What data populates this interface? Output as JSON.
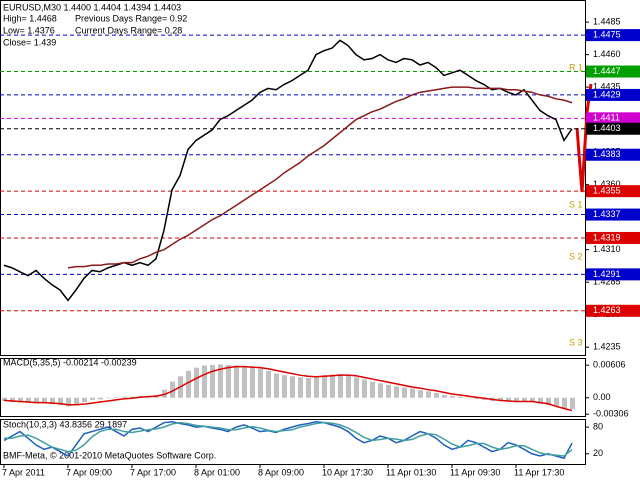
{
  "chart_data": [
    {
      "type": "line",
      "title": "EURUSD,M30  1.4400 1.4404 1.4394 1.4403",
      "info": [
        "High= 1.4468",
        "Previous Days Range= 0.92",
        "Low= 1.4376",
        "Current Days Range= 0.28",
        "Close= 1.439"
      ],
      "annotations": [
        "R 1",
        "S 1",
        "S 2",
        "S 3"
      ],
      "annotation_color": "#c8a000",
      "x": [
        "7 Apr 2011",
        null,
        null,
        null,
        null,
        null,
        null,
        null,
        "7 Apr 09:00",
        null,
        null,
        null,
        null,
        null,
        null,
        null,
        "7 Apr 17:00",
        null,
        null,
        null,
        null,
        null,
        null,
        null,
        "8 Apr 01:00",
        null,
        null,
        null,
        null,
        null,
        null,
        null,
        "8 Apr 09:00",
        null,
        null,
        null,
        null,
        null,
        null,
        null,
        "10 Apr 17:30",
        null,
        null,
        null,
        null,
        null,
        null,
        null,
        "11 Apr 01:30",
        null,
        null,
        null,
        null,
        null,
        null,
        null,
        "11 Apr 09:30",
        null,
        null,
        null,
        null,
        null,
        null,
        null,
        "11 Apr 17:30",
        null,
        null,
        null,
        null,
        null,
        null,
        null
      ],
      "series": [
        {
          "color": "#000000",
          "values": [
            1.4298,
            1.4296,
            1.4293,
            1.429,
            1.4294,
            1.4288,
            1.4283,
            1.4279,
            1.4271,
            1.4279,
            1.4288,
            1.4294,
            1.4293,
            1.4296,
            1.4298,
            1.43,
            1.4298,
            1.43,
            1.4298,
            1.4303,
            1.4325,
            1.4356,
            1.4367,
            1.4387,
            1.4394,
            1.4398,
            1.4402,
            1.441,
            1.4413,
            1.4417,
            1.4421,
            1.4425,
            1.4431,
            1.4434,
            1.4433,
            1.4437,
            1.444,
            1.4444,
            1.4448,
            1.446,
            1.4463,
            1.4465,
            1.4471,
            1.4467,
            1.446,
            1.4456,
            1.4457,
            1.446,
            1.4456,
            1.4454,
            1.4457,
            1.4456,
            1.4452,
            1.4454,
            1.445,
            1.4444,
            1.4446,
            1.4448,
            1.4444,
            1.444,
            1.4437,
            1.4433,
            1.4434,
            1.4431,
            1.4429,
            1.4433,
            1.4425,
            1.4417,
            1.4413,
            1.441,
            1.4394,
            1.4403
          ]
        },
        {
          "color": "#8b1a1a",
          "values": [
            null,
            null,
            null,
            null,
            null,
            null,
            null,
            null,
            1.4296,
            1.4297,
            1.4297,
            1.4298,
            1.4298,
            1.4299,
            1.4299,
            1.43,
            1.43,
            1.4303,
            1.4305,
            1.4308,
            1.431,
            1.4314,
            1.4318,
            1.4321,
            1.4325,
            1.4329,
            1.4333,
            1.4336,
            1.434,
            1.4344,
            1.4348,
            1.4352,
            1.4356,
            1.436,
            1.4364,
            1.4369,
            1.4373,
            1.4377,
            1.4382,
            1.4386,
            1.439,
            1.4395,
            1.44,
            1.4405,
            1.441,
            1.4413,
            1.4416,
            1.4418,
            1.4421,
            1.4424,
            1.4426,
            1.4429,
            1.4431,
            1.4432,
            1.4433,
            1.4434,
            1.4435,
            1.4435,
            1.4435,
            1.4434,
            1.4434,
            1.4434,
            1.4434,
            1.4433,
            1.4433,
            1.4432,
            1.4431,
            1.4429,
            1.4428,
            1.4426,
            1.4425,
            1.4423
          ]
        }
      ],
      "levels": [
        {
          "value": 1.4475,
          "color": "#0000cd"
        },
        {
          "value": 1.4447,
          "color": "#00a000"
        },
        {
          "value": 1.4429,
          "color": "#0000cd"
        },
        {
          "value": 1.4411,
          "color": "#d000d0"
        },
        {
          "value": 1.4403,
          "color": "#000000"
        },
        {
          "value": 1.4383,
          "color": "#0000cd"
        },
        {
          "value": 1.4355,
          "color": "#dd0000"
        },
        {
          "value": 1.4337,
          "color": "#0000cd"
        },
        {
          "value": 1.4319,
          "color": "#dd0000"
        },
        {
          "value": 1.4291,
          "color": "#0000cd"
        },
        {
          "value": 1.4263,
          "color": "#dd0000"
        }
      ],
      "ylim": [
        1.4229,
        1.4502
      ],
      "yticks": [
        1.4485,
        {
          "value": 1.446,
          "label": "1.4460"
        },
        1.4435,
        {
          "value": 1.441,
          "label": "1.4410"
        },
        1.4385,
        {
          "value": 1.436,
          "label": "1.4360"
        },
        1.4335,
        {
          "value": 1.431,
          "label": "1.4310"
        },
        1.4285,
        {
          "value": 1.426,
          "label": "1.4260"
        },
        1.4235
      ]
    },
    {
      "type": "bar",
      "title": "MACD(5,35,5) -0.00214 -0.00239",
      "series": [
        {
          "type": "bar",
          "color": "#c0c0c0",
          "values": [
            -0.0006,
            -0.0008,
            -0.0009,
            -0.001,
            -0.0009,
            -0.001,
            -0.0012,
            -0.0014,
            -0.0016,
            -0.0013,
            -0.0008,
            -0.0004,
            -0.0003,
            -0.0001,
            0.0001,
            0.0002,
            0.0002,
            0.0003,
            0.0003,
            0.0005,
            0.0015,
            0.003,
            0.004,
            0.005,
            0.0056,
            0.006,
            0.0061,
            0.0062,
            0.0061,
            0.006,
            0.0058,
            0.0056,
            0.0054,
            0.005,
            0.0045,
            0.0042,
            0.004,
            0.0038,
            0.0037,
            0.004,
            0.0042,
            0.0043,
            0.0044,
            0.0042,
            0.0038,
            0.0034,
            0.003,
            0.0027,
            0.0024,
            0.0021,
            0.0019,
            0.0017,
            0.0014,
            0.0012,
            0.0009,
            0.0005,
            0.0003,
            0.0002,
            0.0,
            -0.0002,
            -0.0004,
            -0.0006,
            -0.0006,
            -0.0007,
            -0.0007,
            -0.0006,
            -0.0008,
            -0.0011,
            -0.0014,
            -0.0016,
            -0.002,
            -0.00214
          ]
        },
        {
          "type": "line",
          "color": "#dd0000",
          "values": [
            -0.0005,
            -0.0006,
            -0.0007,
            -0.0008,
            -0.0009,
            -0.0009,
            -0.001,
            -0.0011,
            -0.0013,
            -0.0013,
            -0.0012,
            -0.001,
            -0.0008,
            -0.0006,
            -0.0004,
            -0.0002,
            -0.0001,
            0.0001,
            0.0002,
            0.0003,
            0.0006,
            0.0012,
            0.002,
            0.0028,
            0.0036,
            0.0043,
            0.0049,
            0.0053,
            0.0056,
            0.0058,
            0.0058,
            0.0057,
            0.0056,
            0.0054,
            0.0051,
            0.0048,
            0.0045,
            0.0042,
            0.004,
            0.0039,
            0.004,
            0.0041,
            0.0042,
            0.0042,
            0.0041,
            0.0038,
            0.0035,
            0.0032,
            0.0029,
            0.0026,
            0.0023,
            0.002,
            0.0018,
            0.0015,
            0.0013,
            0.001,
            0.0007,
            0.0005,
            0.0003,
            0.0001,
            -0.0001,
            -0.0003,
            -0.0005,
            -0.0006,
            -0.0007,
            -0.0007,
            -0.0007,
            -0.0009,
            -0.0011,
            -0.0016,
            -0.002,
            -0.00239
          ]
        }
      ],
      "ylim": [
        -0.0034,
        0.0074
      ],
      "yticks": [
        0.00606,
        {
          "value": 0,
          "label": "0.00"
        },
        -0.00306
      ]
    },
    {
      "type": "line",
      "title": "Stoch(10,3,3) 43.8356 29.1897",
      "annotation": "BMF-Meta, © 2001-2010 MetaQuotes Software Corp.",
      "series": [
        {
          "color": "#1f5fbf",
          "values": [
            50,
            60,
            70,
            55,
            40,
            30,
            35,
            25,
            15,
            40,
            65,
            70,
            75,
            80,
            70,
            60,
            75,
            78,
            70,
            80,
            90,
            92,
            88,
            85,
            80,
            82,
            78,
            75,
            70,
            80,
            85,
            78,
            70,
            72,
            68,
            75,
            80,
            85,
            88,
            92,
            90,
            85,
            80,
            70,
            55,
            45,
            50,
            60,
            55,
            45,
            50,
            60,
            70,
            65,
            55,
            40,
            30,
            35,
            50,
            45,
            35,
            25,
            30,
            45,
            40,
            30,
            20,
            15,
            20,
            15,
            10,
            43.8356
          ]
        },
        {
          "color": "#40a0a0",
          "values": [
            55,
            55,
            60,
            62,
            55,
            45,
            35,
            30,
            25,
            28,
            40,
            58,
            70,
            75,
            75,
            70,
            68,
            71,
            74,
            76,
            80,
            87,
            90,
            88,
            84,
            82,
            80,
            78,
            74,
            74,
            78,
            81,
            78,
            73,
            70,
            72,
            74,
            80,
            84,
            88,
            90,
            89,
            85,
            78,
            68,
            57,
            50,
            52,
            55,
            53,
            50,
            52,
            60,
            65,
            63,
            53,
            42,
            35,
            38,
            43,
            43,
            35,
            30,
            33,
            38,
            38,
            30,
            22,
            18,
            17,
            15,
            29.1897
          ]
        }
      ],
      "ylim": [
        -3,
        96
      ],
      "yticks": [
        80,
        20
      ]
    }
  ]
}
